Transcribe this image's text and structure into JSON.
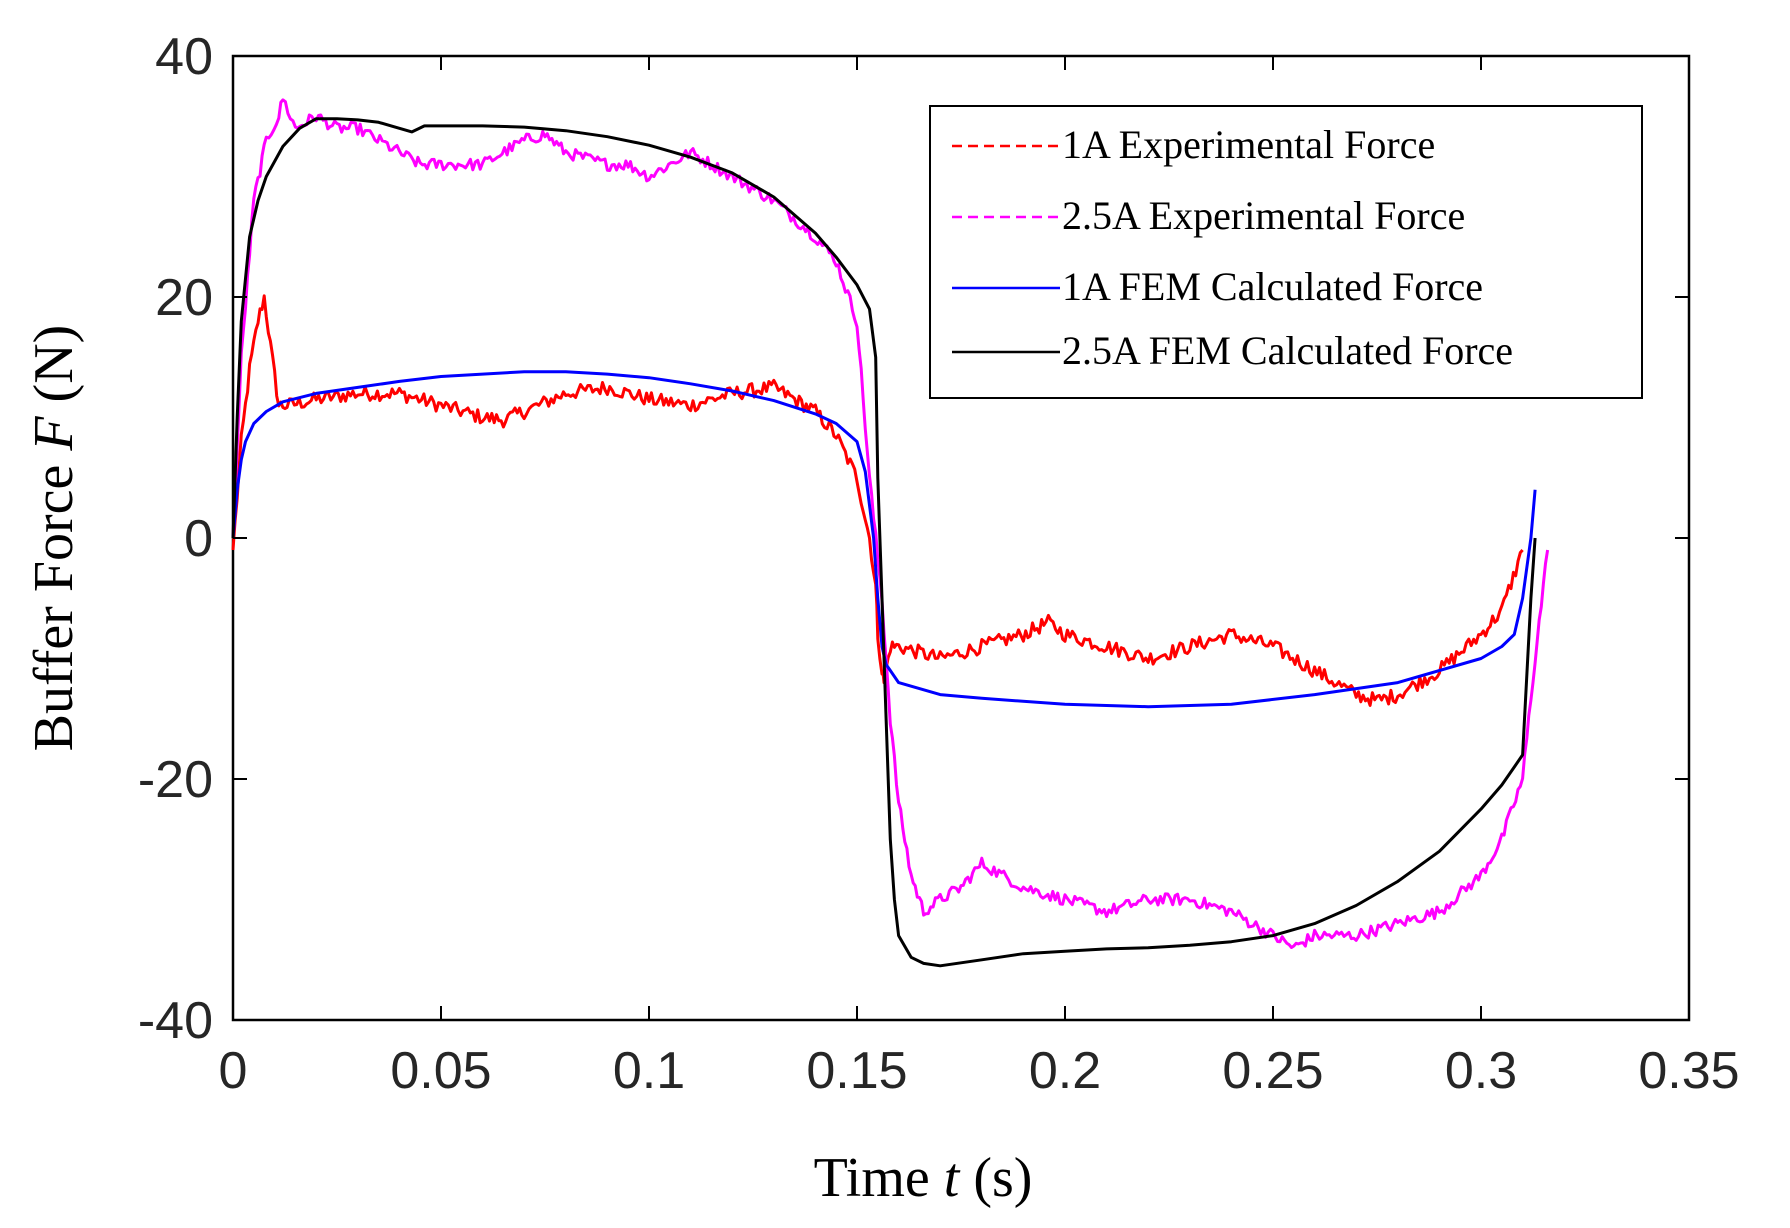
{
  "chart_data": {
    "type": "line",
    "xlabel_pre": "Time ",
    "xlabel_var": "t",
    "xlabel_post": " (s)",
    "ylabel_pre": "Buffer Force ",
    "ylabel_var": "F",
    "ylabel_post": " (N)",
    "xlim": [
      0,
      0.35
    ],
    "ylim": [
      -40,
      40
    ],
    "xticks": [
      0,
      0.05,
      0.1,
      0.15,
      0.2,
      0.25,
      0.3,
      0.35
    ],
    "xtick_labels": [
      "0",
      "0.05",
      "0.1",
      "0.15",
      "0.2",
      "0.25",
      "0.3",
      "0.35"
    ],
    "yticks": [
      40,
      20,
      0,
      -20,
      -40
    ],
    "ytick_labels": [
      "40",
      "20",
      "0",
      "-20",
      "-40"
    ],
    "grid": false,
    "legend_position": "top-right",
    "series": [
      {
        "name": "1A Experimental Force",
        "color": "#ff0000",
        "style": "dashed",
        "noise": 0.6,
        "x": [
          0,
          0.002,
          0.004,
          0.006,
          0.0075,
          0.009,
          0.011,
          0.013,
          0.02,
          0.03,
          0.04,
          0.05,
          0.06,
          0.065,
          0.07,
          0.08,
          0.09,
          0.1,
          0.11,
          0.12,
          0.13,
          0.135,
          0.14,
          0.145,
          0.15,
          0.153,
          0.1545,
          0.155,
          0.156,
          0.1565,
          0.158,
          0.16,
          0.17,
          0.18,
          0.19,
          0.196,
          0.2,
          0.21,
          0.22,
          0.23,
          0.24,
          0.25,
          0.26,
          0.27,
          0.275,
          0.28,
          0.29,
          0.3,
          0.305,
          0.31
        ],
        "y": [
          -1,
          8,
          14,
          18,
          20,
          16,
          11,
          11,
          11.5,
          12,
          12,
          11,
          10,
          9.8,
          10.5,
          12,
          12.5,
          11.5,
          11,
          12,
          12.5,
          11.5,
          10.5,
          8.5,
          5,
          0,
          -4,
          -8,
          -11,
          -12,
          -9,
          -9,
          -10,
          -9,
          -8,
          -7,
          -8,
          -9,
          -10,
          -9,
          -8,
          -9,
          -11,
          -13,
          -13.5,
          -13,
          -11,
          -8,
          -6,
          -1
        ]
      },
      {
        "name": "2.5A Experimental Force",
        "color": "#ff00ff",
        "style": "dashed",
        "noise": 0.5,
        "x": [
          0,
          0.002,
          0.005,
          0.008,
          0.011,
          0.012,
          0.015,
          0.02,
          0.025,
          0.03,
          0.04,
          0.045,
          0.05,
          0.06,
          0.07,
          0.075,
          0.08,
          0.09,
          0.095,
          0.1,
          0.11,
          0.12,
          0.13,
          0.14,
          0.145,
          0.15,
          0.153,
          0.156,
          0.158,
          0.16,
          0.163,
          0.166,
          0.17,
          0.175,
          0.18,
          0.19,
          0.2,
          0.21,
          0.22,
          0.23,
          0.24,
          0.25,
          0.255,
          0.26,
          0.27,
          0.28,
          0.29,
          0.3,
          0.305,
          0.31,
          0.313,
          0.316
        ],
        "y": [
          0,
          15,
          28,
          33,
          35,
          36.5,
          34,
          35,
          34,
          34,
          32,
          31,
          31,
          31,
          33,
          33.5,
          32,
          31,
          31,
          30,
          32,
          30,
          28,
          25,
          23,
          18,
          5,
          -5,
          -15,
          -22,
          -28,
          -31,
          -30,
          -29,
          -27,
          -29,
          -30,
          -31,
          -30,
          -30,
          -31,
          -33,
          -34,
          -33,
          -33,
          -32,
          -31,
          -28,
          -25,
          -20,
          -10,
          -1
        ]
      },
      {
        "name": "1A FEM Calculated Force",
        "color": "#0000ff",
        "style": "solid",
        "noise": 0,
        "x": [
          0,
          0.001,
          0.002,
          0.003,
          0.005,
          0.008,
          0.012,
          0.02,
          0.03,
          0.04,
          0.05,
          0.06,
          0.07,
          0.08,
          0.09,
          0.1,
          0.11,
          0.12,
          0.13,
          0.14,
          0.145,
          0.15,
          0.152,
          0.154,
          0.155,
          0.156,
          0.157,
          0.158,
          0.16,
          0.17,
          0.18,
          0.2,
          0.22,
          0.24,
          0.26,
          0.28,
          0.3,
          0.305,
          0.308,
          0.31,
          0.312,
          0.313
        ],
        "y": [
          0,
          4,
          6.5,
          8,
          9.5,
          10.5,
          11.3,
          12,
          12.5,
          13,
          13.4,
          13.6,
          13.8,
          13.8,
          13.6,
          13.3,
          12.8,
          12.2,
          11.4,
          10.3,
          9.5,
          8,
          5.5,
          0,
          -5,
          -9,
          -10.5,
          -11,
          -12,
          -13,
          -13.3,
          -13.8,
          -14,
          -13.8,
          -13,
          -12,
          -10,
          -9,
          -8,
          -5,
          0,
          4
        ]
      },
      {
        "name": "2.5A FEM Calculated Force",
        "color": "#000000",
        "style": "solid",
        "noise": 0,
        "x": [
          0,
          0.001,
          0.002,
          0.004,
          0.006,
          0.008,
          0.012,
          0.016,
          0.02,
          0.025,
          0.03,
          0.035,
          0.04,
          0.043,
          0.046,
          0.05,
          0.06,
          0.07,
          0.08,
          0.09,
          0.1,
          0.11,
          0.12,
          0.13,
          0.14,
          0.145,
          0.15,
          0.153,
          0.1545,
          0.155,
          0.156,
          0.157,
          0.158,
          0.159,
          0.16,
          0.163,
          0.166,
          0.17,
          0.18,
          0.19,
          0.2,
          0.21,
          0.22,
          0.23,
          0.24,
          0.25,
          0.26,
          0.27,
          0.28,
          0.29,
          0.3,
          0.305,
          0.308,
          0.31,
          0.312,
          0.313
        ],
        "y": [
          0,
          10,
          18,
          25,
          28,
          30,
          32.5,
          34,
          34.8,
          34.8,
          34.7,
          34.5,
          34,
          33.7,
          34.2,
          34.2,
          34.2,
          34.1,
          33.8,
          33.3,
          32.6,
          31.6,
          30.3,
          28.3,
          25.3,
          23.3,
          21,
          19,
          15,
          5,
          -5,
          -15,
          -25,
          -30,
          -33,
          -34.8,
          -35.3,
          -35.5,
          -35,
          -34.5,
          -34.3,
          -34.1,
          -34,
          -33.8,
          -33.5,
          -33,
          -32,
          -30.5,
          -28.5,
          -26,
          -22.5,
          -20.5,
          -19,
          -18,
          -5,
          0
        ]
      }
    ]
  }
}
